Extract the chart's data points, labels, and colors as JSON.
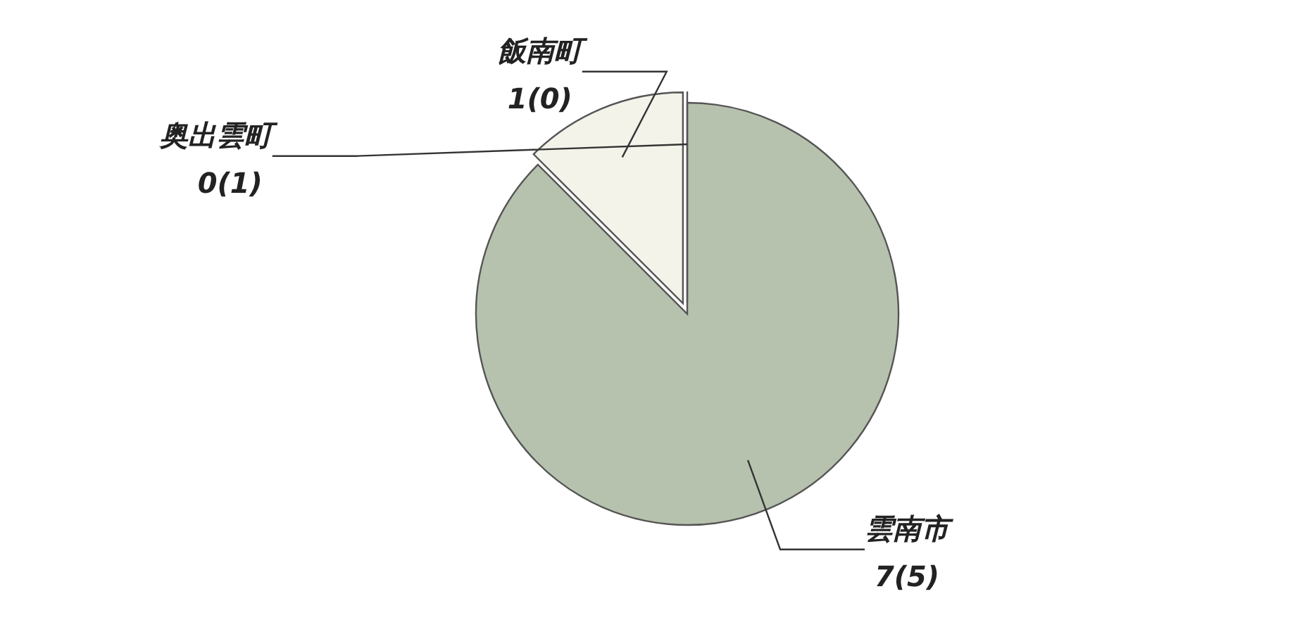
{
  "chart_data": {
    "type": "pie",
    "categories": [
      "雲南市",
      "飯南町",
      "奥出雲町"
    ],
    "values": [
      7,
      1,
      0
    ],
    "value_labels": [
      "7(5)",
      "1(0)",
      "0(1)"
    ],
    "colors": [
      "#b7c2ae",
      "#f3f3ea",
      "#c9d0c0"
    ]
  }
}
